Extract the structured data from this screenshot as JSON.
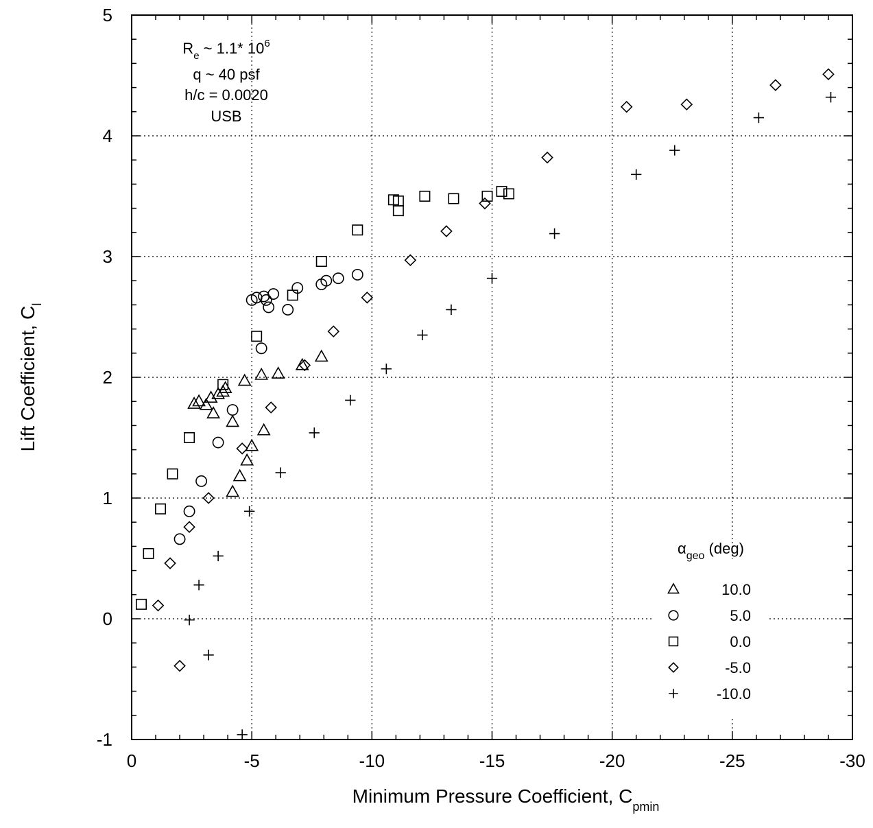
{
  "chart_data": {
    "type": "scatter",
    "xlabel": "Minimum Pressure Coefficient,  C",
    "xlabel_sub": "pmin",
    "ylabel": "Lift Coefficient, C",
    "ylabel_sub": "l",
    "xlim": [
      0,
      -30
    ],
    "ylim": [
      -1,
      5
    ],
    "x_ticks": [
      0,
      -5,
      -10,
      -15,
      -20,
      -25,
      -30
    ],
    "y_ticks": [
      -1,
      0,
      1,
      2,
      3,
      4,
      5
    ],
    "grid": true,
    "annotations": {
      "re_text": "R",
      "re_sub": "e",
      "re_rest": " ~ 1.1* 10",
      "re_sup": "6",
      "q": "q ~ 40 psf",
      "hc": "h/c = 0.0020",
      "usb": "USB"
    },
    "legend": {
      "position": "bottom-right",
      "title_symbol": "α",
      "title_sub": "geo",
      "title_rest": " (deg)"
    },
    "series": [
      {
        "name": "10.0",
        "marker": "triangle",
        "points": [
          [
            -2.6,
            1.78
          ],
          [
            -2.8,
            1.8
          ],
          [
            -3.1,
            1.77
          ],
          [
            -3.3,
            1.83
          ],
          [
            -3.4,
            1.7
          ],
          [
            -3.6,
            1.86
          ],
          [
            -3.8,
            1.88
          ],
          [
            -3.9,
            1.91
          ],
          [
            -4.2,
            1.63
          ],
          [
            -4.7,
            1.97
          ],
          [
            -5.4,
            2.02
          ],
          [
            -6.1,
            2.03
          ],
          [
            -7.1,
            2.1
          ],
          [
            -7.9,
            2.17
          ],
          [
            -5.5,
            1.56
          ],
          [
            -5.0,
            1.43
          ],
          [
            -4.8,
            1.31
          ],
          [
            -4.5,
            1.18
          ],
          [
            -4.2,
            1.05
          ]
        ]
      },
      {
        "name": "5.0",
        "marker": "circle",
        "points": [
          [
            -5.0,
            2.64
          ],
          [
            -5.2,
            2.66
          ],
          [
            -5.5,
            2.67
          ],
          [
            -5.6,
            2.64
          ],
          [
            -5.7,
            2.58
          ],
          [
            -5.9,
            2.69
          ],
          [
            -6.5,
            2.56
          ],
          [
            -6.9,
            2.74
          ],
          [
            -7.9,
            2.77
          ],
          [
            -8.1,
            2.8
          ],
          [
            -8.6,
            2.82
          ],
          [
            -9.4,
            2.85
          ],
          [
            -5.4,
            2.24
          ],
          [
            -4.2,
            1.73
          ],
          [
            -3.6,
            1.46
          ],
          [
            -2.9,
            1.14
          ],
          [
            -2.4,
            0.89
          ],
          [
            -2.0,
            0.66
          ]
        ]
      },
      {
        "name": "0.0",
        "marker": "square",
        "points": [
          [
            -0.4,
            0.12
          ],
          [
            -0.7,
            0.54
          ],
          [
            -1.2,
            0.91
          ],
          [
            -1.7,
            1.2
          ],
          [
            -2.4,
            1.5
          ],
          [
            -3.8,
            1.94
          ],
          [
            -5.2,
            2.34
          ],
          [
            -6.7,
            2.68
          ],
          [
            -7.9,
            2.96
          ],
          [
            -9.4,
            3.22
          ],
          [
            -10.9,
            3.47
          ],
          [
            -11.1,
            3.46
          ],
          [
            -11.1,
            3.38
          ],
          [
            -12.2,
            3.5
          ],
          [
            -13.4,
            3.48
          ],
          [
            -14.8,
            3.5
          ],
          [
            -15.4,
            3.54
          ],
          [
            -15.7,
            3.52
          ]
        ]
      },
      {
        "name": "-5.0",
        "marker": "diamond",
        "points": [
          [
            -2.0,
            -0.39
          ],
          [
            -1.1,
            0.11
          ],
          [
            -1.6,
            0.46
          ],
          [
            -2.4,
            0.76
          ],
          [
            -3.2,
            1.0
          ],
          [
            -4.6,
            1.41
          ],
          [
            -5.8,
            1.75
          ],
          [
            -8.4,
            2.38
          ],
          [
            -7.2,
            2.1
          ],
          [
            -9.8,
            2.66
          ],
          [
            -11.6,
            2.97
          ],
          [
            -13.1,
            3.21
          ],
          [
            -14.7,
            3.44
          ],
          [
            -17.3,
            3.82
          ],
          [
            -20.6,
            4.24
          ],
          [
            -23.1,
            4.26
          ],
          [
            -26.8,
            4.42
          ],
          [
            -29.0,
            4.51
          ]
        ]
      },
      {
        "name": "-10.0",
        "marker": "plus",
        "points": [
          [
            -2.4,
            -0.01
          ],
          [
            -2.8,
            0.28
          ],
          [
            -3.2,
            -0.3
          ],
          [
            -3.6,
            0.52
          ],
          [
            -4.6,
            -0.96
          ],
          [
            -4.9,
            0.89
          ],
          [
            -6.2,
            1.21
          ],
          [
            -7.6,
            1.54
          ],
          [
            -9.1,
            1.81
          ],
          [
            -10.6,
            2.07
          ],
          [
            -12.1,
            2.35
          ],
          [
            -13.3,
            2.56
          ],
          [
            -15.0,
            2.82
          ],
          [
            -17.6,
            3.19
          ],
          [
            -21.0,
            3.68
          ],
          [
            -22.6,
            3.88
          ],
          [
            -26.1,
            4.15
          ],
          [
            -29.1,
            4.32
          ]
        ]
      }
    ]
  }
}
